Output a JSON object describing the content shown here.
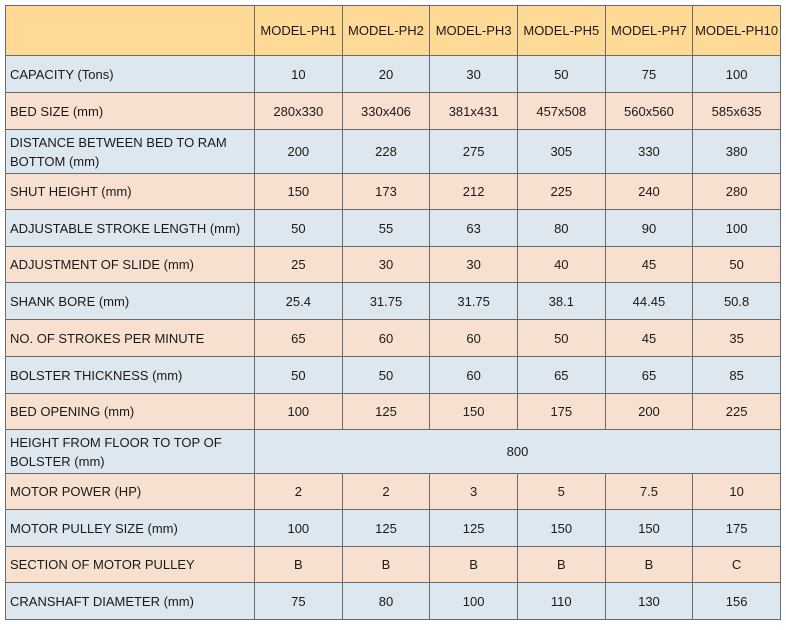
{
  "table": {
    "header": {
      "corner": "",
      "models": [
        "MODEL-PH1",
        "MODEL-PH2",
        "MODEL-PH3",
        "MODEL-PH5",
        "MODEL-PH7",
        "MODEL-PH10"
      ]
    },
    "rows": [
      {
        "label": "CAPACITY (Tons)",
        "values": [
          "10",
          "20",
          "30",
          "50",
          "75",
          "100"
        ]
      },
      {
        "label": "BED SIZE (mm)",
        "values": [
          "280x330",
          "330x406",
          "381x431",
          "457x508",
          "560x560",
          "585x635"
        ]
      },
      {
        "label": "DISTANCE BETWEEN BED TO RAM BOTTOM (mm)",
        "values": [
          "200",
          "228",
          "275",
          "305",
          "330",
          "380"
        ]
      },
      {
        "label": "SHUT HEIGHT (mm)",
        "values": [
          "150",
          "173",
          "212",
          "225",
          "240",
          "280"
        ]
      },
      {
        "label": "ADJUSTABLE STROKE LENGTH (mm)",
        "values": [
          "50",
          "55",
          "63",
          "80",
          "90",
          "100"
        ]
      },
      {
        "label": "ADJUSTMENT OF SLIDE (mm)",
        "values": [
          "25",
          "30",
          "30",
          "40",
          "45",
          "50"
        ]
      },
      {
        "label": "SHANK BORE (mm)",
        "values": [
          "25.4",
          "31.75",
          "31.75",
          "38.1",
          "44.45",
          "50.8"
        ]
      },
      {
        "label": "NO. OF STROKES PER MINUTE",
        "values": [
          "65",
          "60",
          "60",
          "50",
          "45",
          "35"
        ]
      },
      {
        "label": "BOLSTER THICKNESS (mm)",
        "values": [
          "50",
          "50",
          "60",
          "65",
          "65",
          "85"
        ]
      },
      {
        "label": "BED OPENING (mm)",
        "values": [
          "100",
          "125",
          "150",
          "175",
          "200",
          "225"
        ]
      },
      {
        "label": "HEIGHT FROM FLOOR TO TOP OF BOLSTER (mm)",
        "merged_value": "800"
      },
      {
        "label": "MOTOR POWER (HP)",
        "values": [
          "2",
          "2",
          "3",
          "5",
          "7.5",
          "10"
        ]
      },
      {
        "label": "MOTOR PULLEY SIZE (mm)",
        "values": [
          "100",
          "125",
          "125",
          "150",
          "150",
          "175"
        ]
      },
      {
        "label": "SECTION OF MOTOR PULLEY",
        "values": [
          "B",
          "B",
          "B",
          "B",
          "B",
          "C"
        ]
      },
      {
        "label": "CRANSHAFT DIAMETER (mm)",
        "values": [
          "75",
          "80",
          "100",
          "110",
          "130",
          "156"
        ]
      }
    ]
  },
  "colors": {
    "header_bg": "#ffd996",
    "row_blue": "#dde7ef",
    "row_peach": "#f8e0d0",
    "border": "#6b6b6b"
  }
}
